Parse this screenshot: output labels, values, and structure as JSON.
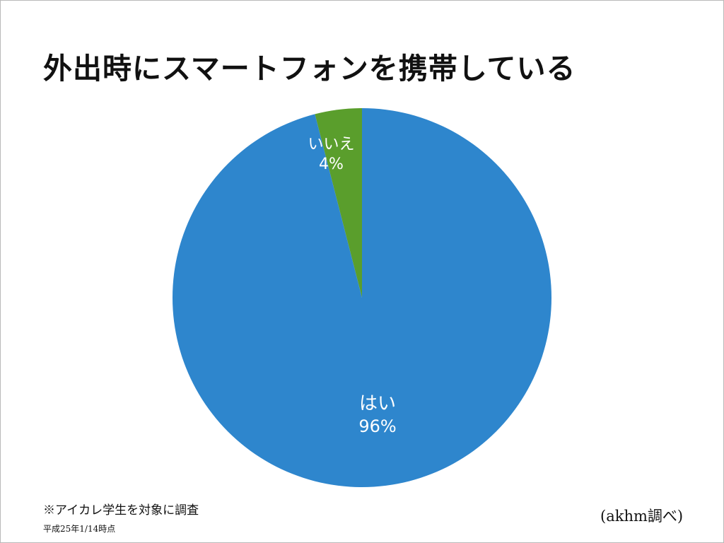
{
  "slide": {
    "title": "外出時にスマートフォンを携帯している",
    "note": "※アイカレ学生を対象に調査",
    "date": "平成25年1/14時点",
    "credit": "(akhm調べ)"
  },
  "chart_data": {
    "type": "pie",
    "title": "外出時にスマートフォンを携帯している",
    "start": "12 o'clock",
    "direction": "counter-clockwise from top: いいえ first",
    "slices": [
      {
        "label": "いいえ",
        "value": 4,
        "value_label": "4%",
        "color": "#5a9e2c"
      },
      {
        "label": "はい",
        "value": 96,
        "value_label": "96%",
        "color": "#2e86cd"
      }
    ]
  }
}
